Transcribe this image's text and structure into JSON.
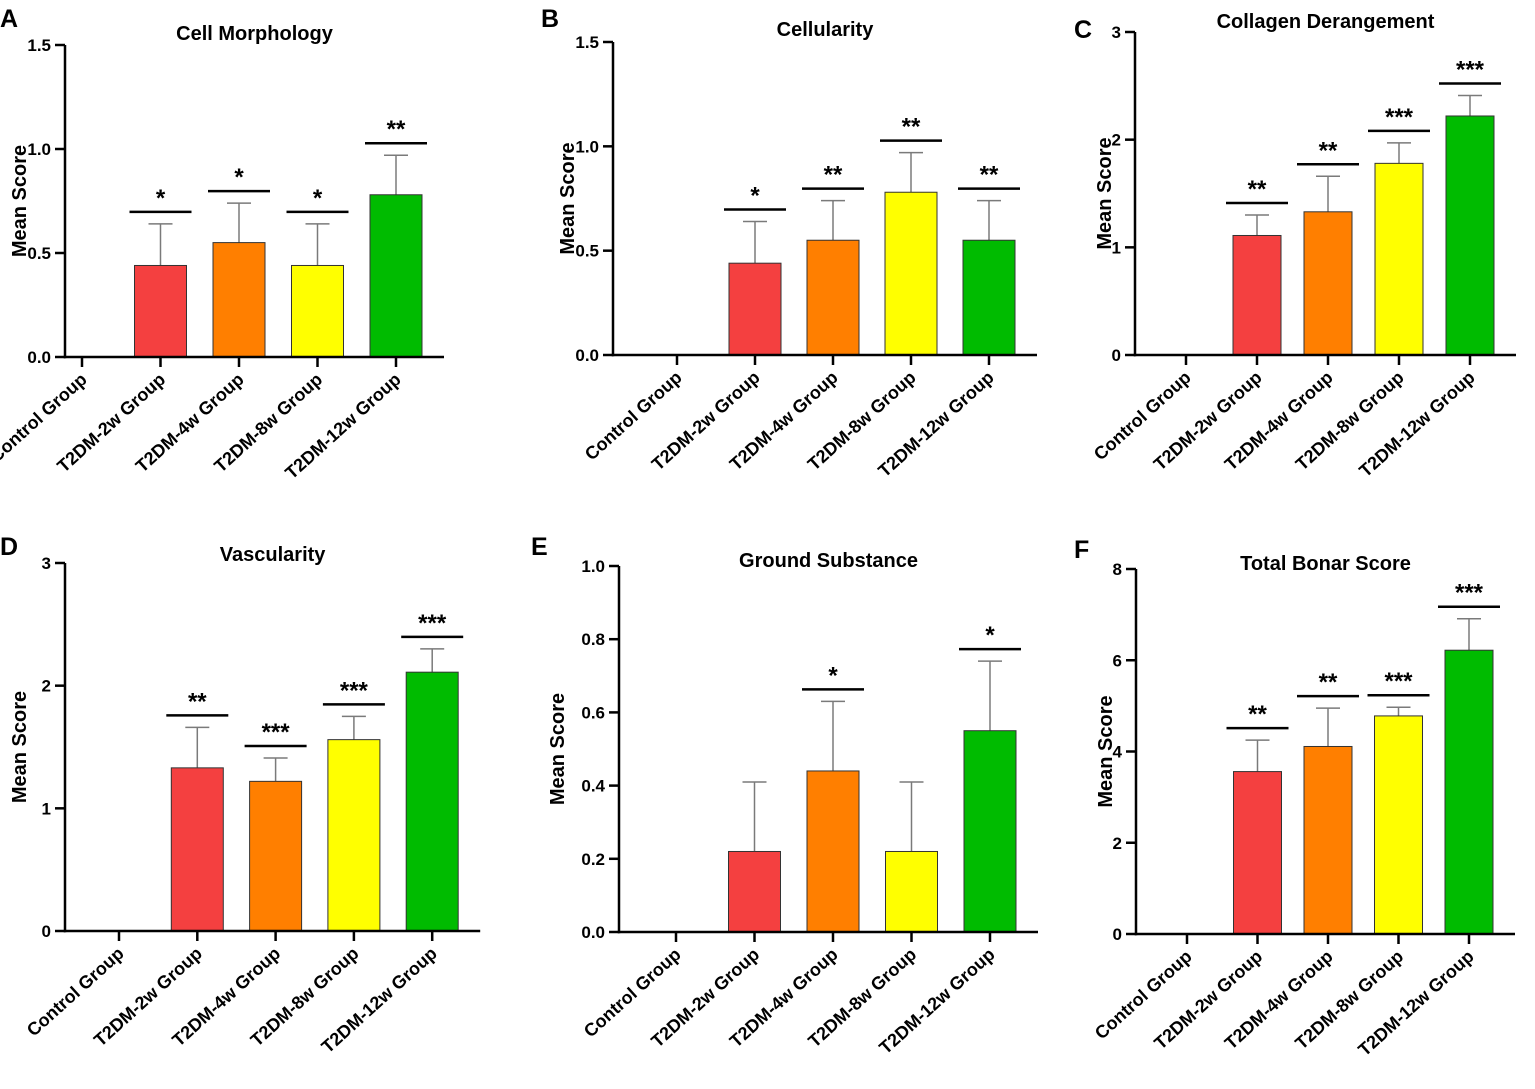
{
  "figure": {
    "background": "#ffffff"
  },
  "style": {
    "axis_color": "#000000",
    "bar_outline": "#333333",
    "error_color": "#7a7a7a",
    "series_colors": [
      "#ffffff",
      "#f44040",
      "#ff7f00",
      "#ffff00",
      "#00bb00"
    ]
  },
  "chart_data": [
    {
      "panel": "A",
      "type": "bar",
      "title": "Cell Morphology",
      "ylabel": "Mean Score",
      "xlabel": "",
      "categories": [
        "Control Group",
        "T2DM-2w Group",
        "T2DM-4w Group",
        "T2DM-8w Group",
        "T2DM-12w Group"
      ],
      "values": [
        0,
        0.44,
        0.55,
        0.44,
        0.78
      ],
      "errors": [
        0,
        0.2,
        0.19,
        0.2,
        0.19
      ],
      "significance": [
        "",
        "*",
        "*",
        "*",
        "**"
      ],
      "ylim": [
        0,
        1.5
      ],
      "yticks": [
        0,
        0.5,
        1.0,
        1.5
      ],
      "ytick_labels": [
        "0.0",
        "0.5",
        "1.0",
        "1.5"
      ]
    },
    {
      "panel": "B",
      "type": "bar",
      "title": "Cellularity",
      "ylabel": "Mean Score",
      "xlabel": "",
      "categories": [
        "Control Group",
        "T2DM-2w Group",
        "T2DM-4w Group",
        "T2DM-8w Group",
        "T2DM-12w Group"
      ],
      "values": [
        0,
        0.44,
        0.55,
        0.78,
        0.55
      ],
      "errors": [
        0,
        0.2,
        0.19,
        0.19,
        0.19
      ],
      "significance": [
        "",
        "*",
        "**",
        "**",
        "**"
      ],
      "ylim": [
        0,
        1.5
      ],
      "yticks": [
        0,
        0.5,
        1.0,
        1.5
      ],
      "ytick_labels": [
        "0.0",
        "0.5",
        "1.0",
        "1.5"
      ]
    },
    {
      "panel": "C",
      "type": "bar",
      "title": "Collagen Derangement",
      "ylabel": "Mean Score",
      "xlabel": "",
      "categories": [
        "Control Group",
        "T2DM-2w Group",
        "T2DM-4w Group",
        "T2DM-8w Group",
        "T2DM-12w Group"
      ],
      "values": [
        0,
        1.11,
        1.33,
        1.78,
        2.22
      ],
      "errors": [
        0,
        0.19,
        0.33,
        0.19,
        0.19
      ],
      "significance": [
        "",
        "**",
        "**",
        "***",
        "***"
      ],
      "ylim": [
        0,
        3
      ],
      "yticks": [
        0,
        1,
        2,
        3
      ],
      "ytick_labels": [
        "0",
        "1",
        "2",
        "3"
      ]
    },
    {
      "panel": "D",
      "type": "bar",
      "title": "Vascularity",
      "ylabel": "Mean Score",
      "xlabel": "",
      "categories": [
        "Control Group",
        "T2DM-2w Group",
        "T2DM-4w Group",
        "T2DM-8w Group",
        "T2DM-12w Group"
      ],
      "values": [
        0,
        1.33,
        1.22,
        1.56,
        2.11
      ],
      "errors": [
        0,
        0.33,
        0.19,
        0.19,
        0.19
      ],
      "significance": [
        "",
        "**",
        "***",
        "***",
        "***"
      ],
      "ylim": [
        0,
        3
      ],
      "yticks": [
        0,
        1,
        2,
        3
      ],
      "ytick_labels": [
        "0",
        "1",
        "2",
        "3"
      ]
    },
    {
      "panel": "E",
      "type": "bar",
      "title": "Ground Substance",
      "ylabel": "Mean Score",
      "xlabel": "",
      "categories": [
        "Control Group",
        "T2DM-2w Group",
        "T2DM-4w Group",
        "T2DM-8w Group",
        "T2DM-12w Group"
      ],
      "values": [
        0,
        0.22,
        0.44,
        0.22,
        0.55
      ],
      "errors": [
        0,
        0.19,
        0.19,
        0.19,
        0.19
      ],
      "significance": [
        "",
        "",
        "*",
        "",
        "*"
      ],
      "ylim": [
        0,
        1.0
      ],
      "yticks": [
        0,
        0.2,
        0.4,
        0.6,
        0.8,
        1.0
      ],
      "ytick_labels": [
        "0.0",
        "0.2",
        "0.4",
        "0.6",
        "0.8",
        "1.0"
      ]
    },
    {
      "panel": "F",
      "type": "bar",
      "title": "Total Bonar Score",
      "ylabel": "Mean Score",
      "xlabel": "",
      "categories": [
        "Control Group",
        "T2DM-2w Group",
        "T2DM-4w Group",
        "T2DM-8w Group",
        "T2DM-12w Group"
      ],
      "values": [
        0,
        3.56,
        4.11,
        4.78,
        6.22
      ],
      "errors": [
        0,
        0.69,
        0.84,
        0.19,
        0.69
      ],
      "significance": [
        "",
        "**",
        "**",
        "***",
        "***"
      ],
      "ylim": [
        0,
        8
      ],
      "yticks": [
        0,
        2,
        4,
        6,
        8
      ],
      "ytick_labels": [
        "0",
        "2",
        "4",
        "6",
        "8"
      ]
    }
  ]
}
